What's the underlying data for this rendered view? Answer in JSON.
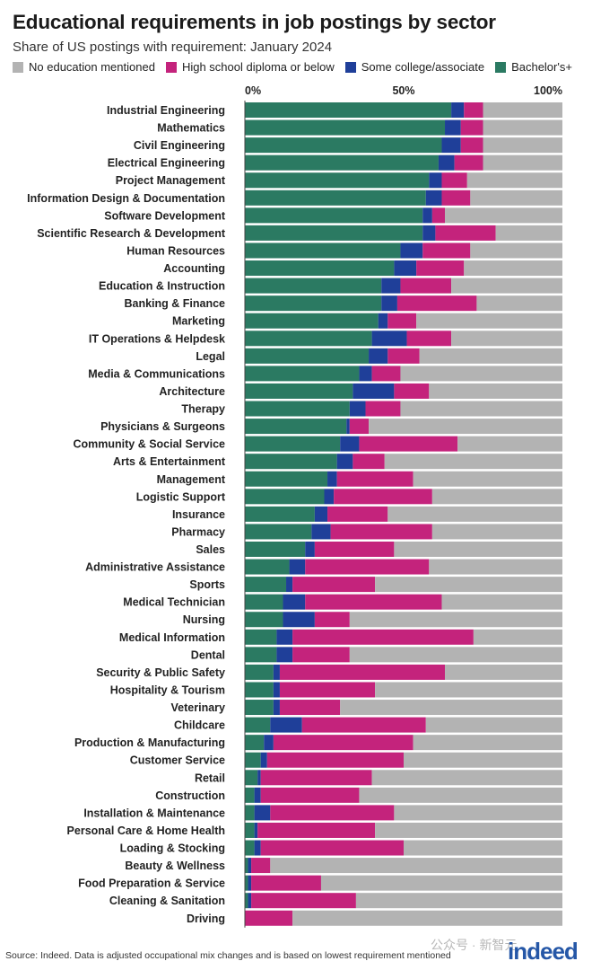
{
  "title": "Educational requirements in job postings by sector",
  "subtitle": "Share of US postings with requirement: January 2024",
  "source": "Source: Indeed. Data is adjusted occupational mix changes and is based on lowest requirement mentioned",
  "watermark": "公众号 · 新智元",
  "logo_text": "indeed",
  "chart_data": {
    "type": "bar",
    "orientation": "horizontal",
    "stacked": true,
    "xlim": [
      0,
      100
    ],
    "xticks": [
      0,
      50,
      100
    ],
    "xtick_labels": [
      "0%",
      "50%",
      "100%"
    ],
    "grid": false,
    "legend_position": "top",
    "categories": [
      "Industrial Engineering",
      "Mathematics",
      "Civil Engineering",
      "Electrical Engineering",
      "Project Management",
      "Information Design & Documentation",
      "Software Development",
      "Scientific Research & Development",
      "Human Resources",
      "Accounting",
      "Education & Instruction",
      "Banking & Finance",
      "Marketing",
      "IT Operations & Helpdesk",
      "Legal",
      "Media & Communications",
      "Architecture",
      "Therapy",
      "Physicians & Surgeons",
      "Community & Social Service",
      "Arts & Entertainment",
      "Management",
      "Logistic Support",
      "Insurance",
      "Pharmacy",
      "Sales",
      "Administrative Assistance",
      "Sports",
      "Medical Technician",
      "Nursing",
      "Medical Information",
      "Dental",
      "Security & Public Safety",
      "Hospitality & Tourism",
      "Veterinary",
      "Childcare",
      "Production & Manufacturing",
      "Customer Service",
      "Retail",
      "Construction",
      "Installation & Maintenance",
      "Personal Care & Home Health",
      "Loading & Stocking",
      "Beauty & Wellness",
      "Food Preparation & Service",
      "Cleaning & Sanitation",
      "Driving"
    ],
    "series": [
      {
        "name": "Bachelor's+",
        "color": "#2b7a62",
        "values": [
          65,
          63,
          62,
          61,
          58,
          57,
          56,
          56,
          49,
          47,
          43,
          43,
          42,
          40,
          39,
          36,
          34,
          33,
          32,
          30,
          29,
          26,
          25,
          22,
          21,
          19,
          14,
          13,
          12,
          12,
          10,
          10,
          9,
          9,
          9,
          8,
          6,
          5,
          4,
          3,
          3,
          3,
          3,
          1,
          1,
          1,
          0
        ]
      },
      {
        "name": "Some college/associate",
        "color": "#1f3f99",
        "values": [
          4,
          5,
          6,
          5,
          4,
          5,
          3,
          4,
          7,
          7,
          6,
          5,
          3,
          11,
          6,
          4,
          13,
          5,
          1,
          6,
          5,
          3,
          3,
          4,
          6,
          3,
          5,
          2,
          7,
          10,
          5,
          5,
          2,
          2,
          2,
          10,
          3,
          2,
          1,
          2,
          5,
          1,
          2,
          1,
          1,
          1,
          0
        ]
      },
      {
        "name": "High school diploma or below",
        "color": "#c4237c",
        "values": [
          6,
          7,
          7,
          9,
          8,
          9,
          4,
          19,
          15,
          15,
          16,
          25,
          9,
          14,
          10,
          9,
          11,
          11,
          6,
          31,
          10,
          24,
          31,
          19,
          32,
          25,
          39,
          26,
          43,
          11,
          57,
          18,
          52,
          30,
          19,
          39,
          44,
          43,
          35,
          31,
          39,
          37,
          45,
          6,
          22,
          33,
          15
        ]
      },
      {
        "name": "No education mentioned",
        "color": "#b3b3b3",
        "values": [
          25,
          25,
          25,
          25,
          30,
          29,
          37,
          21,
          29,
          31,
          35,
          27,
          46,
          35,
          45,
          51,
          42,
          51,
          61,
          33,
          56,
          47,
          41,
          55,
          41,
          53,
          42,
          59,
          38,
          67,
          28,
          67,
          37,
          59,
          70,
          43,
          47,
          50,
          60,
          64,
          53,
          59,
          50,
          92,
          76,
          65,
          85
        ]
      }
    ]
  }
}
